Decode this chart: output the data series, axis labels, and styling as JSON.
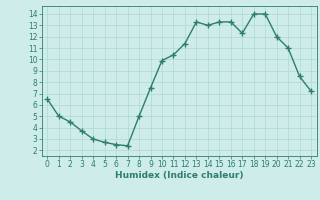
{
  "x": [
    0,
    1,
    2,
    3,
    4,
    5,
    6,
    7,
    8,
    9,
    10,
    11,
    12,
    13,
    14,
    15,
    16,
    17,
    18,
    19,
    20,
    21,
    22,
    23
  ],
  "y": [
    6.5,
    5.0,
    4.5,
    3.7,
    3.0,
    2.7,
    2.5,
    2.4,
    5.0,
    7.5,
    9.9,
    10.4,
    11.4,
    13.3,
    13.0,
    13.3,
    13.3,
    12.3,
    14.0,
    14.0,
    12.0,
    11.0,
    8.5,
    7.2
  ],
  "line_color": "#2e7d6e",
  "marker": "+",
  "markersize": 4,
  "linewidth": 1.0,
  "bg_color": "#cdecea",
  "grid_color": "#b0d8d4",
  "xlabel": "Humidex (Indice chaleur)",
  "xlabel_fontsize": 6.5,
  "tick_fontsize": 5.5,
  "xlim": [
    -0.5,
    23.5
  ],
  "ylim": [
    1.5,
    14.7
  ],
  "yticks": [
    2,
    3,
    4,
    5,
    6,
    7,
    8,
    9,
    10,
    11,
    12,
    13,
    14
  ],
  "xticks": [
    0,
    1,
    2,
    3,
    4,
    5,
    6,
    7,
    8,
    9,
    10,
    11,
    12,
    13,
    14,
    15,
    16,
    17,
    18,
    19,
    20,
    21,
    22,
    23
  ]
}
